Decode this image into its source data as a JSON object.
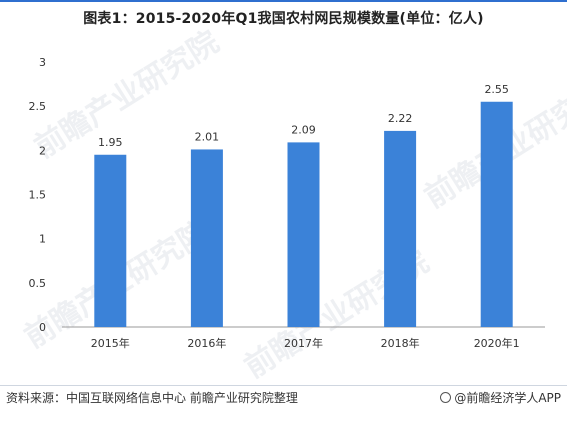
{
  "title": "图表1：2015-2020年Q1我国农村网民规模数量(单位：亿人)",
  "footer": {
    "source": "资料来源：中国互联网络信息中心 前瞻产业研究院整理",
    "brand": "@前瞻经济学人APP"
  },
  "watermark": "前瞻产业研究院",
  "colors": {
    "bar": "#3b82d8",
    "accent": "#2f6fcf"
  },
  "chart_data": {
    "type": "bar",
    "categories": [
      "2015年",
      "2016年",
      "2017年",
      "2018年",
      "2020年1"
    ],
    "values": [
      1.95,
      2.01,
      2.09,
      2.22,
      2.55
    ],
    "value_labels": [
      "1.95",
      "2.01",
      "2.09",
      "2.22",
      "2.55"
    ],
    "yticks": [
      "0",
      "0.5",
      "1",
      "1.5",
      "2",
      "2.5",
      "3"
    ],
    "ylim": [
      0,
      3
    ],
    "grid": false,
    "title": "图表1：2015-2020年Q1我国农村网民规模数量(单位：亿人)"
  }
}
